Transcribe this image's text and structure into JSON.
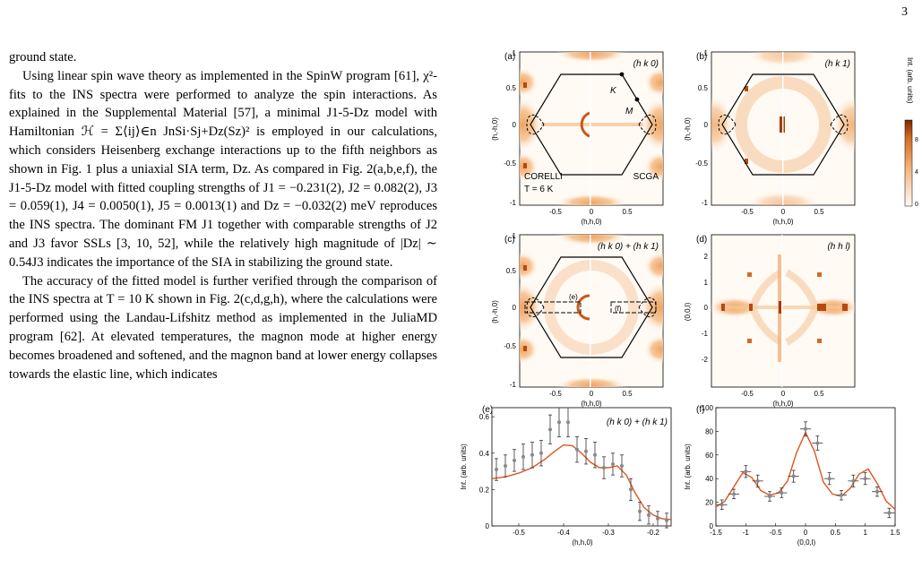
{
  "page_number": "3",
  "paragraphs": [
    "ground state.",
    "Using linear spin wave theory as implemented in the SpinW program [61], χ²-fits to the INS spectra were performed to analyze the spin interactions. As explained in the Supplemental Material [57], a minimal J1-5-Dz model with Hamiltonian ℋ = Σ⟨ij⟩∈n JnSi·Sj+Dz(Sz)² is employed in our calculations, which considers Heisenberg exchange interactions up to the fifth neighbors as shown in Fig. 1 plus a uniaxial SIA term, Dz. As compared in Fig. 2(a,b,e,f), the J1-5-Dz model with fitted coupling strengths of J1 = −0.231(2), J2 = 0.082(2), J3 = 0.059(1), J4 = 0.0050(1), J5 = 0.0013(1) and Dz = −0.032(2) meV reproduces the INS spectra. The dominant FM J1 together with comparable strengths of J2 and J3 favor SSLs [3, 10, 52], while the relatively high magnitude of |Dz| ∼ 0.54J3 indicates the importance of the SIA in stabilizing the ground state.",
    "The accuracy of the fitted model is further verified through the comparison of the INS spectra at T = 10 K shown in Fig. 2(c,d,g,h), where the calculations were performed using the Landau-Lifshitz method as implemented in the JuliaMD program [62]. At elevated temperatures, the magnon mode at higher energy becomes broadened and softened, and the magnon band at lower energy collapses towards the elastic line, which indicates"
  ],
  "figure": {
    "panels": {
      "a": {
        "label": "(a)",
        "tag": "(h k 0)",
        "xlabel": "(h,h,0)",
        "ylabel": "(h,-h,0)",
        "left_text": "CORELLI",
        "temp_text": "T = 6 K",
        "right_text": "SCGA",
        "point_K": "K",
        "point_M": "M",
        "xticks": [
          "-0.5",
          "0",
          "0.5"
        ],
        "yticks": [
          "1",
          "0.5",
          "0",
          "-0.5",
          "-1"
        ]
      },
      "b": {
        "label": "(b)",
        "tag": "(h k 1)",
        "xlabel": "(h,h,0)",
        "ylabel": "(h,-h,0)",
        "xticks": [
          "-0.5",
          "0",
          "0.5"
        ],
        "yticks": [
          "1",
          "0.5",
          "0",
          "-0.5",
          "-1"
        ]
      },
      "c": {
        "label": "(c)",
        "tag": "(h k 0) + (h k 1)",
        "xlabel": "(h,h,0)",
        "ylabel": "(h,-h,0)",
        "box_e": "(e)",
        "box_f": "(f)",
        "xticks": [
          "-0.5",
          "0",
          "0.5"
        ],
        "yticks": [
          "1",
          "0.5",
          "0",
          "-0.5",
          "-1"
        ]
      },
      "d": {
        "label": "(d)",
        "tag": "(h h l)",
        "xlabel": "(h,h,0)",
        "ylabel": "(0,0,l)",
        "xticks": [
          "-0.5",
          "0",
          "0.5"
        ],
        "yticks": [
          "2",
          "1",
          "0",
          "-1",
          "-2"
        ]
      }
    },
    "colorbar": {
      "label": "Int. (arb. units)",
      "ticks": [
        "8",
        "4",
        "0"
      ]
    },
    "colors": {
      "map_low": "#fffaf4",
      "map_mid": "#f2b075",
      "map_high": "#a33d00",
      "fit_line": "#e0551e",
      "data_marker": "#888888"
    }
  },
  "chart_data": [
    {
      "type": "line",
      "panel": "(e)",
      "title": "(h k 0) + (h k 1)",
      "xlabel": "(h,h,0)",
      "ylabel": "Int. (arb. units)",
      "xlim": [
        -0.56,
        -0.16
      ],
      "ylim": [
        0,
        0.65
      ],
      "xticks": [
        "-0.5",
        "-0.4",
        "-0.3",
        "-0.2"
      ],
      "yticks": [
        "0",
        "0.2",
        "0.4",
        "0.6"
      ],
      "series": [
        {
          "kind": "points",
          "x": [
            -0.55,
            -0.53,
            -0.51,
            -0.49,
            -0.47,
            -0.45,
            -0.43,
            -0.41,
            -0.39,
            -0.37,
            -0.35,
            -0.33,
            -0.31,
            -0.29,
            -0.27,
            -0.25,
            -0.23,
            -0.21,
            -0.19,
            -0.17
          ],
          "y": [
            0.31,
            0.33,
            0.36,
            0.38,
            0.39,
            0.4,
            0.53,
            0.57,
            0.57,
            0.42,
            0.41,
            0.39,
            0.32,
            0.34,
            0.33,
            0.2,
            0.08,
            0.06,
            0.04,
            0.03
          ],
          "err": [
            0.06,
            0.06,
            0.06,
            0.07,
            0.07,
            0.07,
            0.08,
            0.08,
            0.08,
            0.07,
            0.07,
            0.07,
            0.06,
            0.06,
            0.06,
            0.06,
            0.05,
            0.05,
            0.04,
            0.04
          ]
        },
        {
          "kind": "fit",
          "x": [
            -0.56,
            -0.53,
            -0.5,
            -0.47,
            -0.44,
            -0.42,
            -0.4,
            -0.38,
            -0.36,
            -0.34,
            -0.32,
            -0.3,
            -0.28,
            -0.26,
            -0.24,
            -0.22,
            -0.2,
            -0.18,
            -0.16
          ],
          "y": [
            0.26,
            0.27,
            0.29,
            0.32,
            0.37,
            0.41,
            0.445,
            0.44,
            0.4,
            0.35,
            0.32,
            0.32,
            0.33,
            0.28,
            0.18,
            0.1,
            0.06,
            0.04,
            0.035
          ]
        }
      ]
    },
    {
      "type": "line",
      "panel": "(f)",
      "xlabel": "(0,0,l)",
      "ylabel": "Int. (arb. units)",
      "xlim": [
        -1.5,
        1.5
      ],
      "ylim": [
        0,
        100
      ],
      "xticks": [
        "-1.5",
        "-1",
        "-0.5",
        "0",
        "0.5",
        "1",
        "1.5"
      ],
      "yticks": [
        "0",
        "20",
        "40",
        "60",
        "80",
        "100"
      ],
      "series": [
        {
          "kind": "points",
          "x": [
            -1.4,
            -1.2,
            -1.0,
            -0.8,
            -0.6,
            -0.4,
            -0.2,
            0.0,
            0.2,
            0.4,
            0.6,
            0.8,
            1.0,
            1.2,
            1.4
          ],
          "y": [
            18,
            27,
            46,
            38,
            25,
            28,
            42,
            82,
            70,
            40,
            26,
            38,
            40,
            29,
            11
          ],
          "xerr": [
            0.09,
            0.09,
            0.09,
            0.09,
            0.09,
            0.09,
            0.09,
            0.09,
            0.09,
            0.09,
            0.09,
            0.09,
            0.09,
            0.09,
            0.09
          ],
          "yerr": [
            4,
            4,
            5,
            5,
            4,
            4,
            5,
            6,
            6,
            5,
            4,
            5,
            5,
            4,
            4
          ]
        },
        {
          "kind": "fit",
          "x": [
            -1.5,
            -1.35,
            -1.2,
            -1.05,
            -0.9,
            -0.75,
            -0.6,
            -0.45,
            -0.3,
            -0.15,
            0.0,
            0.15,
            0.3,
            0.45,
            0.6,
            0.75,
            0.9,
            1.05,
            1.2,
            1.35,
            1.5
          ],
          "y": [
            16,
            21,
            33,
            45,
            41,
            30,
            26,
            28,
            38,
            62,
            79,
            63,
            37,
            27,
            25,
            32,
            44,
            48,
            36,
            21,
            14
          ]
        }
      ]
    }
  ]
}
